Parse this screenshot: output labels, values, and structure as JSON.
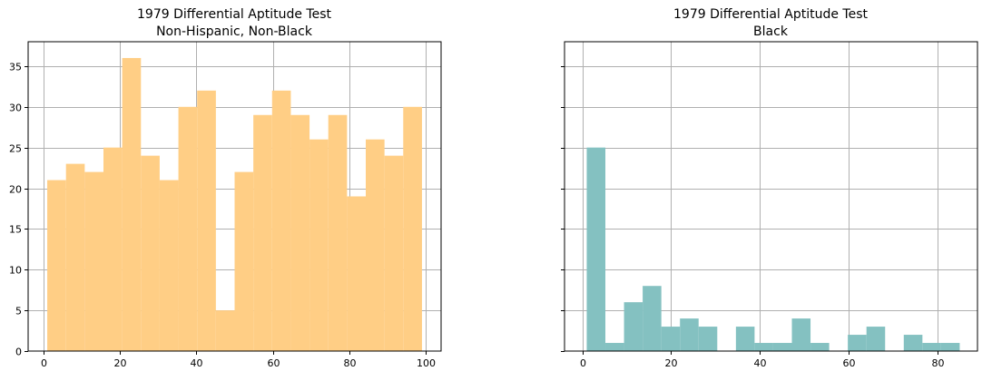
{
  "chart_data": [
    {
      "type": "bar",
      "subtype": "histogram",
      "title": "1979 Differential Aptitude Test",
      "subtitle": "Non-Hispanic, Non-Black",
      "xlabel": "",
      "ylabel": "",
      "color": "#ffce85",
      "grid": true,
      "xlim": [
        -4,
        104
      ],
      "ylim": [
        0,
        38
      ],
      "xticks": [
        "0",
        "20",
        "40",
        "60",
        "80",
        "100"
      ],
      "xtick_values": [
        0,
        20,
        40,
        60,
        80,
        100
      ],
      "yticks": [
        "0",
        "5",
        "10",
        "15",
        "20",
        "25",
        "30",
        "35"
      ],
      "ytick_values": [
        0,
        5,
        10,
        15,
        20,
        25,
        30,
        35
      ],
      "bin_start": 1,
      "bin_width": 4.9,
      "values": [
        21,
        23,
        22,
        25,
        36,
        24,
        21,
        30,
        32,
        5,
        22,
        29,
        32,
        29,
        26,
        29,
        19,
        26,
        24,
        30
      ]
    },
    {
      "type": "bar",
      "subtype": "histogram",
      "title": "1979 Differential Aptitude Test",
      "subtitle": "Black",
      "xlabel": "",
      "ylabel": "",
      "color": "#84c1c1",
      "grid": true,
      "xlim": [
        -4,
        89
      ],
      "ylim": [
        0,
        38
      ],
      "xticks": [
        "0",
        "20",
        "40",
        "60",
        "80"
      ],
      "xtick_values": [
        0,
        20,
        40,
        60,
        80
      ],
      "yticks": [],
      "ytick_values": [
        0,
        5,
        10,
        15,
        20,
        25,
        30,
        35
      ],
      "bin_start": 1,
      "bin_width": 4.2,
      "values": [
        25,
        1,
        6,
        8,
        3,
        4,
        3,
        0,
        3,
        1,
        1,
        4,
        1,
        0,
        2,
        3,
        0,
        2,
        1,
        1
      ]
    }
  ]
}
